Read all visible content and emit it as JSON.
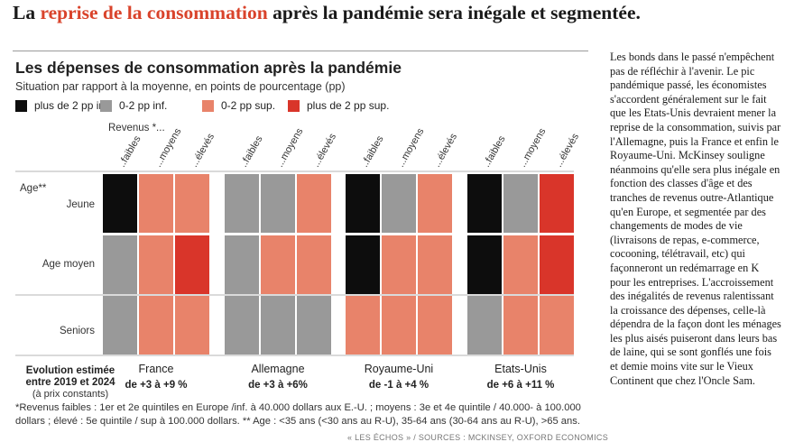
{
  "headline": {
    "highlight": "La reprise de la consommation",
    "prefix": "La ",
    "highlight_part": "reprise de la consommation",
    "rest": " après la pandémie sera inégale et segmentée."
  },
  "colors": {
    "black": "#0d0d0d",
    "gray": "#999999",
    "light_red": "#e8836a",
    "red": "#d9352a",
    "accent": "#d9432b"
  },
  "chart_data": {
    "type": "heatmap",
    "title": "Les dépenses de consommation après la pandémie",
    "subtitle": "Situation par rapport à la moyenne, en points de pourcentage (pp)",
    "legend": [
      {
        "label": "plus de 2 pp inf.",
        "color": "#0d0d0d"
      },
      {
        "label": "0-2 pp inf.",
        "color": "#999999"
      },
      {
        "label": "0-2 pp sup.",
        "color": "#e8836a"
      },
      {
        "label": "plus de 2 pp sup.",
        "color": "#d9352a"
      }
    ],
    "revenue_header": "Revenus *...",
    "income_levels": [
      "..faibles",
      "...moyens",
      "...élevés"
    ],
    "age_header": "Age**",
    "age_groups": [
      "Jeune",
      "Age moyen",
      "Seniors"
    ],
    "evolution_label": "Evolution estimée entre 2019 et 2024",
    "evolution_sublabel": "(à prix constants)",
    "countries": [
      {
        "name": "France",
        "evolution": "de +3 à +9 %",
        "cells": [
          [
            "black",
            "light_red",
            "light_red"
          ],
          [
            "gray",
            "light_red",
            "red"
          ],
          [
            "gray",
            "light_red",
            "light_red"
          ]
        ]
      },
      {
        "name": "Allemagne",
        "evolution": "de +3 à +6%",
        "cells": [
          [
            "gray",
            "gray",
            "light_red"
          ],
          [
            "gray",
            "light_red",
            "light_red"
          ],
          [
            "gray",
            "gray",
            "gray"
          ]
        ]
      },
      {
        "name": "Royaume-Uni",
        "evolution": "de -1 à +4 %",
        "cells": [
          [
            "black",
            "gray",
            "light_red"
          ],
          [
            "black",
            "light_red",
            "light_red"
          ],
          [
            "light_red",
            "light_red",
            "light_red"
          ]
        ]
      },
      {
        "name": "Etats-Unis",
        "evolution": "de +6 à +11 %",
        "cells": [
          [
            "black",
            "gray",
            "red"
          ],
          [
            "black",
            "light_red",
            "red"
          ],
          [
            "gray",
            "light_red",
            "light_red"
          ]
        ]
      }
    ]
  },
  "footnote": "*Revenus faibles : 1er et 2e quintiles en Europe /inf. à 40.000 dollars aux E.-U. ; moyens : 3e et 4e quintile / 40.000- à 100.000 dollars ; élevé : 5e quintile / sup à 100.000 dollars. ** Age : <35 ans (<30 ans au R-U), 35-64 ans (30-64 ans au R-U), >65 ans.",
  "source": "« LES ÉCHOS » / SOURCES : MCKINSEY, OXFORD ECONOMICS",
  "body_text": "Les bonds dans le passé n'empêchent pas de réfléchir à l'avenir. Le pic pandémique passé, les économistes s'accordent généralement sur le fait que les Etats-Unis devraient mener la reprise de la consommation, suivis par l'Allemagne, puis la France et enfin le Royaume-Uni. McKinsey souligne néanmoins qu'elle sera plus inégale en fonction des classes d'âge et des tranches de revenus outre-Atlantique qu'en Europe, et segmentée par des changements de modes de vie (livraisons de repas, e-commerce, cocooning, télétravail, etc) qui façonneront un redémarrage en K pour les entreprises. L'accroissement des inégalités de revenus ralentissant la croissance des dépenses, celle-là dépendra de la façon dont les ménages les plus aisés puiseront dans leurs bas de laine, qui se sont gonflés une fois et demie moins vite sur le Vieux Continent que chez l'Oncle Sam."
}
